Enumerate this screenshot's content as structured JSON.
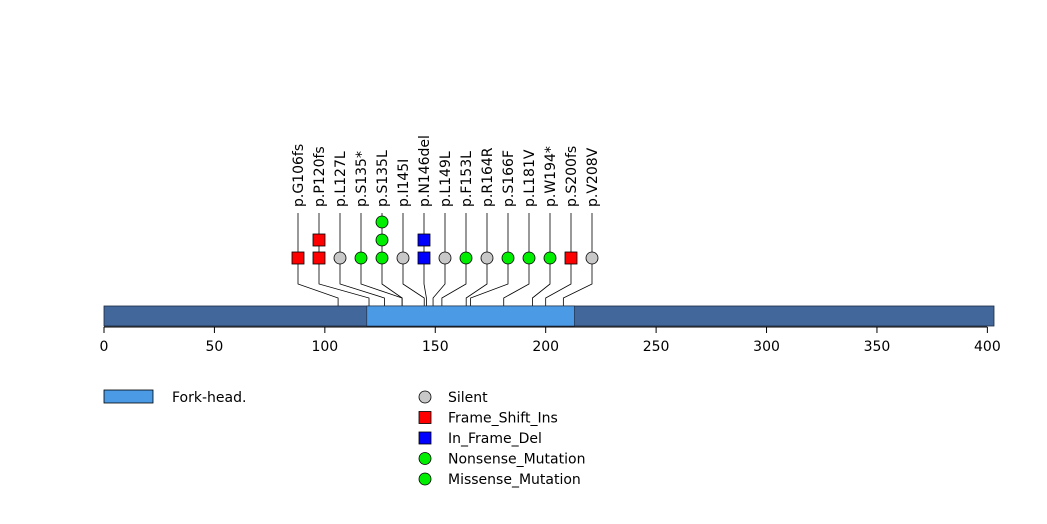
{
  "chart_data": {
    "type": "lollipop",
    "protein_length": 403,
    "axis": {
      "xlim": [
        0,
        403
      ],
      "ticks": [
        0,
        50,
        100,
        150,
        200,
        250,
        300,
        350,
        400
      ],
      "tick_labels": [
        "0",
        "50",
        "100",
        "150",
        "200",
        "250",
        "300",
        "350",
        "400"
      ]
    },
    "domains": [
      {
        "name": "Fork-head.",
        "start": 119,
        "end": 213,
        "color": "#4a9ae6"
      }
    ],
    "backbone_color": "#42679b",
    "mutations": [
      {
        "label": "p.G106fs",
        "position": 106,
        "types": [
          "Frame_Shift_Ins"
        ]
      },
      {
        "label": "p.P120fs",
        "position": 120,
        "types": [
          "Frame_Shift_Ins",
          "Frame_Shift_Ins"
        ]
      },
      {
        "label": "p.L127L",
        "position": 127,
        "types": [
          "Silent"
        ]
      },
      {
        "label": "p.S135*",
        "position": 135,
        "types": [
          "Nonsense_Mutation"
        ]
      },
      {
        "label": "p.S135L",
        "position": 135,
        "types": [
          "Missense_Mutation",
          "Missense_Mutation",
          "Missense_Mutation"
        ]
      },
      {
        "label": "p.I145I",
        "position": 145,
        "types": [
          "Silent"
        ]
      },
      {
        "label": "p.N146del",
        "position": 146,
        "types": [
          "In_Frame_Del",
          "In_Frame_Del"
        ]
      },
      {
        "label": "p.L149L",
        "position": 149,
        "types": [
          "Silent"
        ]
      },
      {
        "label": "p.F153L",
        "position": 153,
        "types": [
          "Missense_Mutation"
        ]
      },
      {
        "label": "p.R164R",
        "position": 164,
        "types": [
          "Silent"
        ]
      },
      {
        "label": "p.S166F",
        "position": 166,
        "types": [
          "Missense_Mutation"
        ]
      },
      {
        "label": "p.L181V",
        "position": 181,
        "types": [
          "Missense_Mutation"
        ]
      },
      {
        "label": "p.W194*",
        "position": 194,
        "types": [
          "Nonsense_Mutation"
        ]
      },
      {
        "label": "p.S200fs",
        "position": 200,
        "types": [
          "Frame_Shift_Ins"
        ]
      },
      {
        "label": "p.V208V",
        "position": 208,
        "types": [
          "Silent"
        ]
      }
    ],
    "legend": [
      {
        "label": "Silent",
        "shape": "circle",
        "color": "#c8c8c8"
      },
      {
        "label": "Frame_Shift_Ins",
        "shape": "square",
        "color": "#ff0000"
      },
      {
        "label": "In_Frame_Del",
        "shape": "square",
        "color": "#0000ff"
      },
      {
        "label": "Nonsense_Mutation",
        "shape": "circle",
        "color": "#00ee00"
      },
      {
        "label": "Missense_Mutation",
        "shape": "circle",
        "color": "#00ee00"
      }
    ]
  }
}
